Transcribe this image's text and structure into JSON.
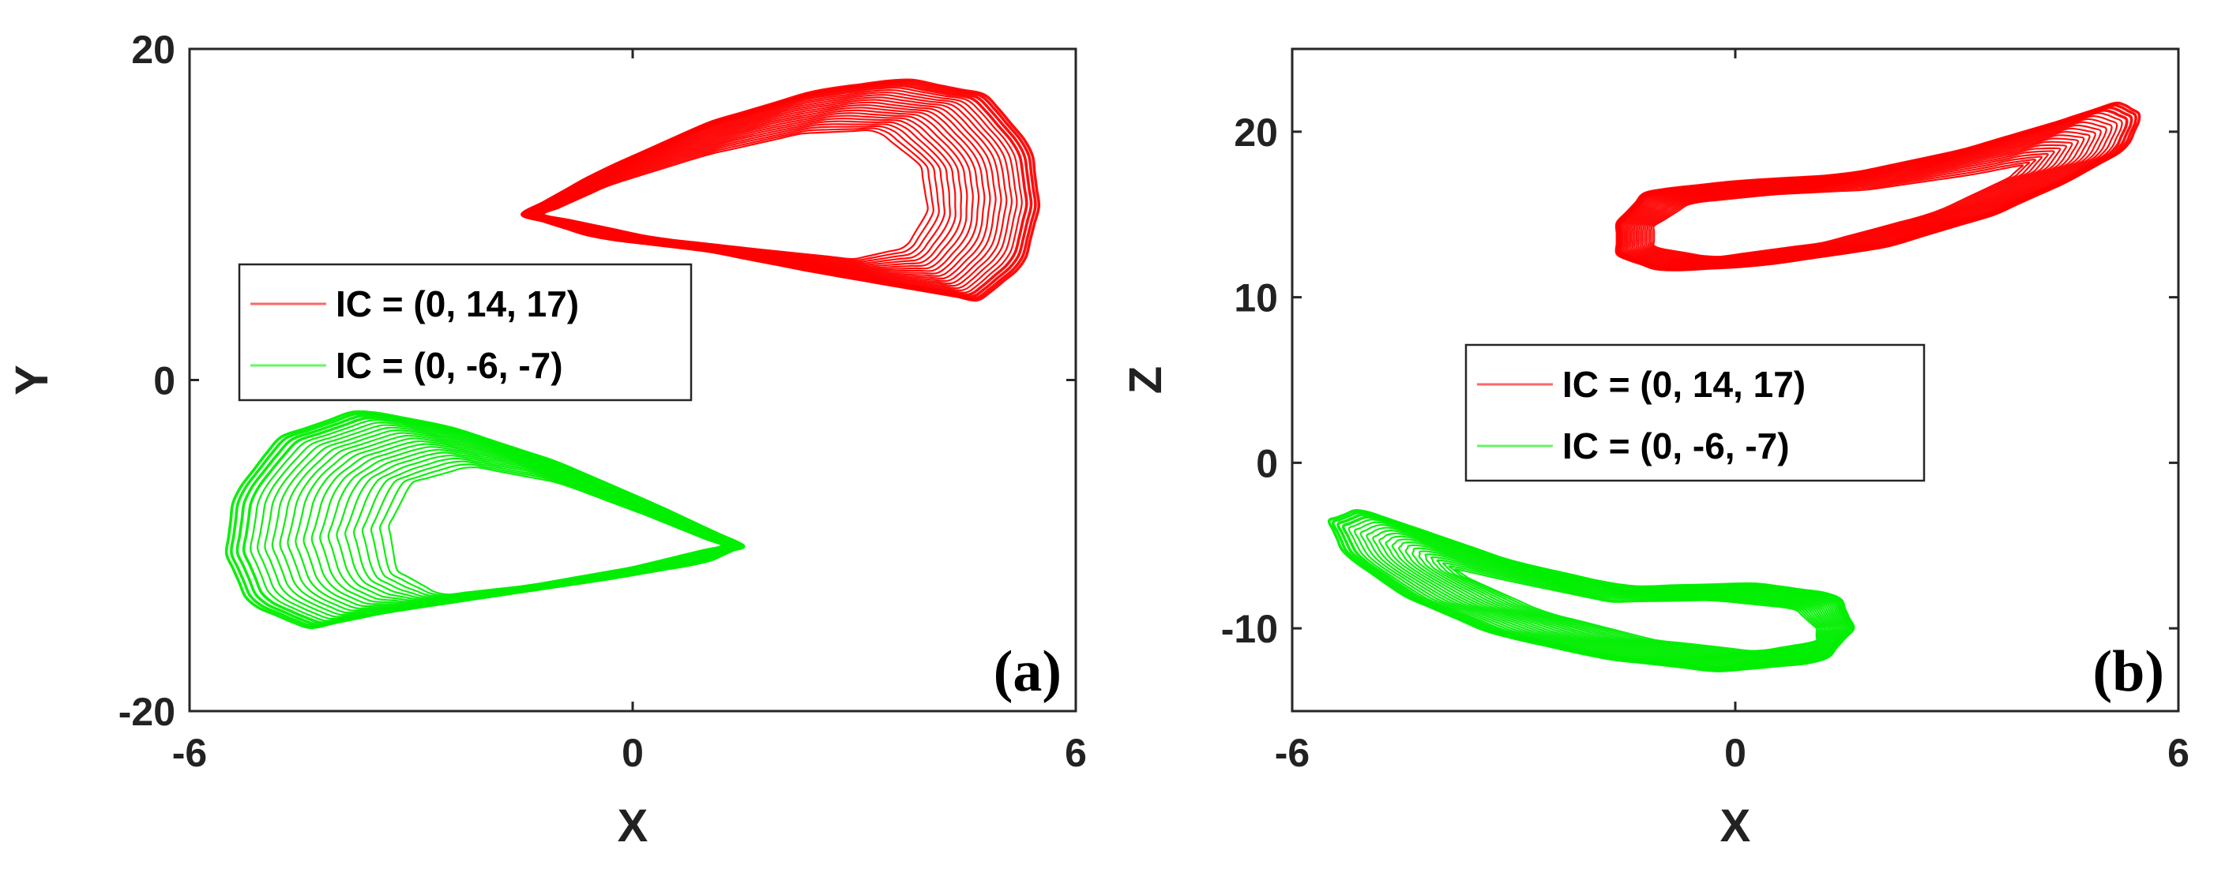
{
  "chart_data": [
    {
      "type": "line",
      "panel_label": "(a)",
      "xlabel": "X",
      "ylabel": "Y",
      "xlim": [
        -6,
        6
      ],
      "ylim": [
        -20,
        20
      ],
      "xticks": [
        "-6",
        "0",
        "6"
      ],
      "yticks": [
        "-20",
        "0",
        "20"
      ],
      "grid": false,
      "legend_position": "center-left",
      "series": [
        {
          "name": "IC = (0, 14, 17)",
          "color": "#ff0000",
          "attractor": {
            "outer": [
              [
                -1.5,
                10
              ],
              [
                -0.5,
                12.5
              ],
              [
                1,
                15.5
              ],
              [
                2.5,
                17.5
              ],
              [
                3.7,
                18.2
              ],
              [
                4.8,
                17.2
              ],
              [
                5.4,
                14
              ],
              [
                5.5,
                10.5
              ],
              [
                5.3,
                7
              ],
              [
                4.7,
                4.8
              ],
              [
                3.8,
                5.5
              ],
              [
                2.5,
                6.5
              ],
              [
                1,
                7.8
              ],
              [
                -0.5,
                8.6
              ],
              [
                -1.5,
                10
              ]
            ],
            "inner": [
              [
                -1.2,
                10
              ],
              [
                -0.3,
                11.8
              ],
              [
                1,
                13.6
              ],
              [
                2.3,
                14.9
              ],
              [
                3.3,
                15.1
              ],
              [
                3.9,
                13
              ],
              [
                4,
                10.2
              ],
              [
                3.7,
                8
              ],
              [
                3,
                7.3
              ],
              [
                1.7,
                7.9
              ],
              [
                0.3,
                8.6
              ],
              [
                -1.2,
                10
              ]
            ]
          }
        },
        {
          "name": "IC = (0, -6, -7)",
          "color": "#00ee00",
          "attractor": {
            "outer": [
              [
                1.5,
                -10
              ],
              [
                0.3,
                -7.5
              ],
              [
                -1,
                -5
              ],
              [
                -2.5,
                -2.8
              ],
              [
                -3.7,
                -1.8
              ],
              [
                -4.8,
                -3.5
              ],
              [
                -5.4,
                -7
              ],
              [
                -5.5,
                -10.5
              ],
              [
                -5.2,
                -13.5
              ],
              [
                -4.4,
                -15
              ],
              [
                -3.3,
                -14
              ],
              [
                -1.8,
                -13
              ],
              [
                -0.3,
                -12
              ],
              [
                1,
                -11
              ],
              [
                1.5,
                -10
              ]
            ],
            "inner": [
              [
                1.2,
                -10
              ],
              [
                0.2,
                -8.2
              ],
              [
                -1,
                -6.2
              ],
              [
                -2.2,
                -5.2
              ],
              [
                -3,
                -6.2
              ],
              [
                -3.3,
                -8.8
              ],
              [
                -3.2,
                -11.5
              ],
              [
                -2.6,
                -13
              ],
              [
                -1.4,
                -12.4
              ],
              [
                0,
                -11.3
              ],
              [
                1.2,
                -10
              ]
            ]
          }
        }
      ]
    },
    {
      "type": "line",
      "panel_label": "(b)",
      "xlabel": "X",
      "ylabel": "Z",
      "xlim": [
        -6,
        6
      ],
      "ylim": [
        -15,
        25
      ],
      "xticks": [
        "-6",
        "0",
        "6"
      ],
      "yticks": [
        "-10",
        "0",
        "10",
        "20"
      ],
      "grid": false,
      "legend_position": "center",
      "series": [
        {
          "name": "IC = (0, 14, 17)",
          "color": "#ff0000",
          "attractor": {
            "outer": [
              [
                -1.6,
                14.5
              ],
              [
                -1.2,
                16.4
              ],
              [
                0,
                17
              ],
              [
                1.5,
                17.4
              ],
              [
                3,
                18.8
              ],
              [
                4.3,
                20.5
              ],
              [
                5.2,
                21.8
              ],
              [
                5.5,
                21
              ],
              [
                5.3,
                19
              ],
              [
                4.5,
                17
              ],
              [
                3.5,
                15
              ],
              [
                2,
                13
              ],
              [
                0.3,
                11.9
              ],
              [
                -1,
                11.6
              ],
              [
                -1.6,
                12.5
              ],
              [
                -1.6,
                14.5
              ]
            ],
            "inner": [
              [
                -1.1,
                14.3
              ],
              [
                -0.6,
                15.7
              ],
              [
                0.5,
                16.2
              ],
              [
                1.8,
                16.5
              ],
              [
                3.2,
                17.4
              ],
              [
                3.9,
                18
              ],
              [
                3.7,
                17.2
              ],
              [
                2.7,
                15.1
              ],
              [
                1.2,
                13.3
              ],
              [
                -0.3,
                12.4
              ],
              [
                -1.1,
                13
              ],
              [
                -1.1,
                14.3
              ]
            ]
          }
        },
        {
          "name": "IC = (0, -6, -7)",
          "color": "#00ee00",
          "attractor": {
            "outer": [
              [
                1.6,
                -10
              ],
              [
                1.4,
                -8
              ],
              [
                0.3,
                -7.3
              ],
              [
                -1.5,
                -7.5
              ],
              [
                -3,
                -6
              ],
              [
                -4.3,
                -4
              ],
              [
                -5.1,
                -2.8
              ],
              [
                -5.5,
                -3.5
              ],
              [
                -5.3,
                -5.5
              ],
              [
                -4.5,
                -8
              ],
              [
                -3.3,
                -10.3
              ],
              [
                -1.8,
                -11.8
              ],
              [
                -0.2,
                -12.6
              ],
              [
                1.2,
                -12
              ],
              [
                1.6,
                -10
              ]
            ],
            "inner": [
              [
                1.1,
                -10
              ],
              [
                0.8,
                -8.8
              ],
              [
                -0.3,
                -8.3
              ],
              [
                -1.7,
                -8.4
              ],
              [
                -3,
                -7.2
              ],
              [
                -3.8,
                -6.4
              ],
              [
                -3.6,
                -7
              ],
              [
                -2.6,
                -9
              ],
              [
                -1.1,
                -10.7
              ],
              [
                0.3,
                -11.4
              ],
              [
                1.1,
                -10.8
              ],
              [
                1.1,
                -10
              ]
            ]
          }
        }
      ]
    }
  ]
}
